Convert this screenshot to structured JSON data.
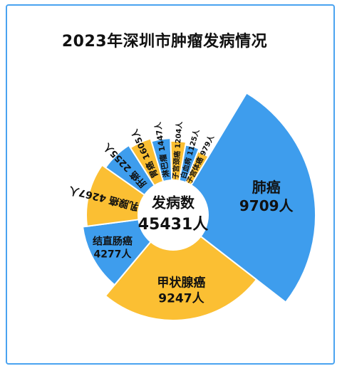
{
  "chart_data": {
    "type": "pie",
    "style": "donut",
    "title": "2023年深圳市肿瘤发病情况",
    "center_label": "发病数",
    "center_value": "45431人",
    "unit": "人",
    "colors": {
      "blue": "#3e9ded",
      "yellow": "#fbbf33",
      "center": "#ffffff",
      "text": "#111111"
    },
    "slices": [
      {
        "name": "肺癌",
        "value": 9709,
        "label_value": "9709人",
        "color": "blue"
      },
      {
        "name": "甲状腺癌",
        "value": 9247,
        "label_value": "9247人",
        "color": "yellow"
      },
      {
        "name": "结直肠癌",
        "value": 4277,
        "label_value": "4277人",
        "color": "blue"
      },
      {
        "name": "乳腺癌",
        "value": 4267,
        "label_value": "4267人",
        "color": "yellow"
      },
      {
        "name": "肝癌",
        "value": 2255,
        "label_value": "2255人",
        "color": "blue"
      },
      {
        "name": "胃癌",
        "value": 1605,
        "label_value": "1605人",
        "color": "yellow"
      },
      {
        "name": "淋巴瘤",
        "value": 1447,
        "label_value": "1447人",
        "color": "blue"
      },
      {
        "name": "子宫颈癌",
        "value": 1204,
        "label_value": "1204人",
        "color": "yellow"
      },
      {
        "name": "白血病",
        "value": 1125,
        "label_value": "1125人",
        "color": "blue"
      },
      {
        "name": "子宫体癌",
        "value": 979,
        "label_value": "979人",
        "color": "yellow"
      }
    ]
  }
}
